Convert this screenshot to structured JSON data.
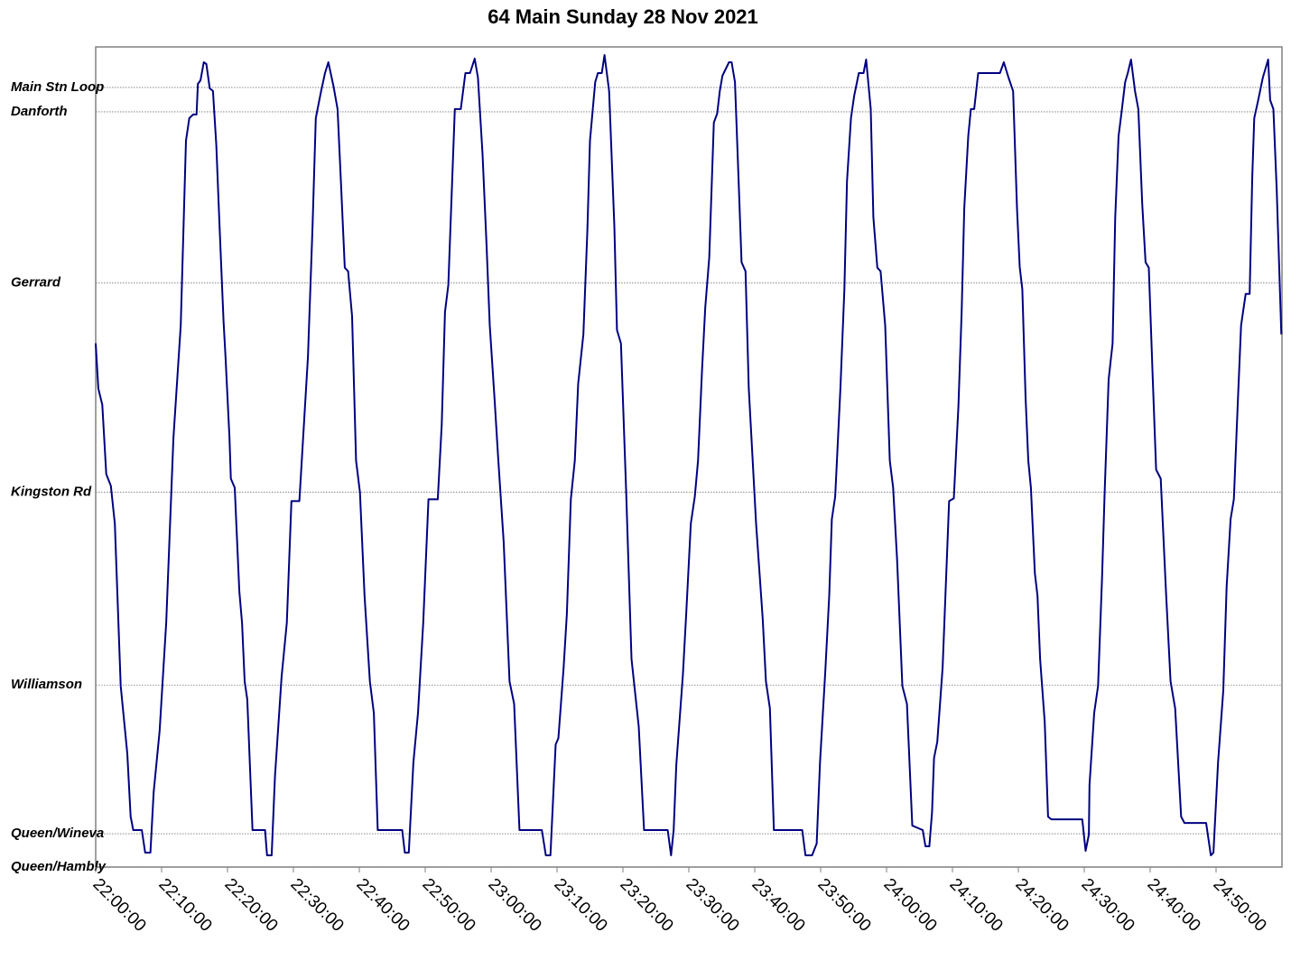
{
  "chart_data": {
    "type": "line",
    "title": "64 Main Sunday 28 Nov 2021",
    "xlim": [
      1320,
      1500
    ],
    "xticks": [
      {
        "value": 1320,
        "label": "22:00:00"
      },
      {
        "value": 1330,
        "label": "22:10:00"
      },
      {
        "value": 1340,
        "label": "22:20:00"
      },
      {
        "value": 1350,
        "label": "22:30:00"
      },
      {
        "value": 1360,
        "label": "22:40:00"
      },
      {
        "value": 1370,
        "label": "22:50:00"
      },
      {
        "value": 1380,
        "label": "23:00:00"
      },
      {
        "value": 1390,
        "label": "23:10:00"
      },
      {
        "value": 1400,
        "label": "23:20:00"
      },
      {
        "value": 1410,
        "label": "23:30:00"
      },
      {
        "value": 1420,
        "label": "23:40:00"
      },
      {
        "value": 1430,
        "label": "23:50:00"
      },
      {
        "value": 1440,
        "label": "24:00:00"
      },
      {
        "value": 1450,
        "label": "24:10:00"
      },
      {
        "value": 1460,
        "label": "24:20:00"
      },
      {
        "value": 1470,
        "label": "24:30:00"
      },
      {
        "value": 1480,
        "label": "24:40:00"
      },
      {
        "value": 1490,
        "label": "24:50:00"
      }
    ],
    "ylim": [
      0,
      9.1
    ],
    "yticks": [
      {
        "value": 0,
        "label": "Queen/Hambly"
      },
      {
        "value": 0.37,
        "label": "Queen/Wineva"
      },
      {
        "value": 2.02,
        "label": "Williamson"
      },
      {
        "value": 4.16,
        "label": "Kingston Rd"
      },
      {
        "value": 6.48,
        "label": "Gerrard"
      },
      {
        "value": 8.38,
        "label": "Danforth"
      },
      {
        "value": 8.65,
        "label": "Main Stn Loop"
      }
    ],
    "grid": true,
    "series": [
      {
        "color": "#000080",
        "x": [
          1320,
          1320.4,
          1321,
          1321.6,
          1322.3,
          1322.9,
          1323.8,
          1324.8,
          1325.3,
          1325.7,
          1327,
          1327.5,
          1328.3,
          1328.8,
          1329.7,
          1330.7,
          1331.8,
          1332.9,
          1333.7,
          1334.2,
          1334.8,
          1335.3,
          1335.5,
          1335.9,
          1336.4,
          1336.8,
          1337.3,
          1337.8,
          1338.3,
          1338.8,
          1339.4,
          1339.7,
          1340.3,
          1340.5,
          1341.1,
          1341.8,
          1342.2,
          1342.6,
          1343,
          1343.8,
          1345.7,
          1346,
          1346.7,
          1347.2,
          1348.2,
          1349,
          1349.7,
          1350.9,
          1352.2,
          1352.9,
          1353.4,
          1354.2,
          1354.8,
          1355.3,
          1356.1,
          1356.7,
          1357.2,
          1357.8,
          1358.3,
          1358.9,
          1359.5,
          1360.1,
          1360.8,
          1361.6,
          1362.2,
          1362.8,
          1366.5,
          1366.9,
          1367.5,
          1368.2,
          1368.9,
          1369.7,
          1370.5,
          1371.9,
          1372.5,
          1373,
          1373.5,
          1374.5,
          1375.4,
          1376.1,
          1376.8,
          1377.5,
          1378,
          1378.7,
          1379.3,
          1379.8,
          1380.5,
          1381.1,
          1381.9,
          1382.8,
          1383.5,
          1384.3,
          1387.7,
          1388.3,
          1389,
          1389.8,
          1390.2,
          1391,
          1391.5,
          1392.1,
          1392.7,
          1393.2,
          1394,
          1394.6,
          1395,
          1395.8,
          1396.2,
          1396.8,
          1397.2,
          1397.9,
          1398.7,
          1399.1,
          1399.7,
          1400.5,
          1401.3,
          1402.4,
          1403.2,
          1406.8,
          1407.3,
          1407.7,
          1408.1,
          1409.1,
          1409.6,
          1410.3,
          1410.9,
          1411.4,
          1412,
          1412.5,
          1413.1,
          1413.8,
          1414.3,
          1414.7,
          1415.1,
          1416.1,
          1416.5,
          1417,
          1417.5,
          1418,
          1418.6,
          1419.1,
          1420.2,
          1421.2,
          1421.7,
          1422.3,
          1422.9,
          1427.2,
          1427.7,
          1428.7,
          1429.4,
          1429.9,
          1430.7,
          1431.3,
          1431.7,
          1432.2,
          1433,
          1433.6,
          1434,
          1434.6,
          1435.1,
          1435.8,
          1436.5,
          1436.9,
          1437.6,
          1438,
          1438.6,
          1439.1,
          1439.8,
          1440.5,
          1441,
          1441.6,
          1442.4,
          1443.1,
          1443.9,
          1445.5,
          1445.9,
          1446.5,
          1446.9,
          1447.2,
          1447.7,
          1448.5,
          1449.5,
          1450.2,
          1450.9,
          1451.4,
          1451.8,
          1452.4,
          1452.8,
          1453.3,
          1453.9,
          1457.2,
          1457.8,
          1458.5,
          1459.2,
          1459.8,
          1460.2,
          1460.6,
          1461.1,
          1461.5,
          1461.9,
          1462.5,
          1462.9,
          1463.3,
          1464,
          1464.5,
          1465,
          1469.7,
          1470.2,
          1470.7,
          1470.8,
          1471.5,
          1472.1,
          1472.7,
          1473.1,
          1473.7,
          1474.3,
          1474.7,
          1475.2,
          1475.6,
          1476.2,
          1476.6,
          1477.1,
          1477.7,
          1478.2,
          1478.8,
          1479.3,
          1479.8,
          1480.4,
          1480.9,
          1481.6,
          1482.4,
          1483.1,
          1483.8,
          1484.7,
          1485.2,
          1488.5,
          1489.2,
          1489.6,
          1490.3,
          1491.1,
          1491.6,
          1492.2,
          1492.7,
          1493.3,
          1493.8,
          1494.5,
          1495.1,
          1495.5,
          1495.8,
          1496.4,
          1497.1,
          1497.9,
          1498.2,
          1498.7,
          1499.2,
          1499.9
        ],
        "values": [
          5.81,
          5.31,
          5.13,
          4.36,
          4.23,
          3.81,
          2.01,
          1.26,
          0.56,
          0.41,
          0.41,
          0.16,
          0.16,
          0.83,
          1.51,
          2.71,
          4.76,
          6.01,
          8.06,
          8.31,
          8.35,
          8.35,
          8.69,
          8.73,
          8.93,
          8.91,
          8.64,
          8.61,
          8.01,
          7.11,
          6.06,
          5.66,
          4.76,
          4.31,
          4.21,
          3.06,
          2.71,
          2.06,
          1.86,
          0.41,
          0.41,
          0.13,
          0.13,
          1.01,
          2.11,
          2.71,
          4.06,
          4.06,
          5.66,
          7.11,
          8.31,
          8.61,
          8.81,
          8.93,
          8.66,
          8.41,
          7.61,
          6.65,
          6.61,
          6.11,
          4.51,
          4.16,
          3.01,
          2.06,
          1.71,
          0.41,
          0.41,
          0.16,
          0.16,
          1.16,
          1.71,
          2.71,
          4.08,
          4.08,
          4.91,
          6.16,
          6.46,
          8.41,
          8.41,
          8.81,
          8.81,
          8.97,
          8.76,
          7.91,
          6.91,
          6.01,
          5.21,
          4.51,
          3.61,
          2.06,
          1.81,
          0.41,
          0.41,
          0.13,
          0.13,
          1.36,
          1.43,
          2.21,
          2.81,
          4.08,
          4.51,
          5.36,
          5.91,
          7.06,
          8.06,
          8.71,
          8.81,
          8.81,
          9.01,
          8.61,
          7.11,
          5.96,
          5.81,
          4.16,
          2.31,
          1.56,
          0.41,
          0.41,
          0.13,
          0.41,
          1.13,
          2.13,
          2.81,
          3.81,
          4.11,
          4.51,
          5.51,
          6.21,
          6.76,
          8.26,
          8.36,
          8.61,
          8.78,
          8.93,
          8.93,
          8.71,
          7.71,
          6.71,
          6.61,
          5.31,
          3.81,
          2.76,
          2.06,
          1.76,
          0.41,
          0.41,
          0.13,
          0.13,
          0.26,
          1.16,
          2.16,
          3.01,
          3.86,
          4.11,
          5.31,
          6.41,
          7.61,
          8.31,
          8.56,
          8.81,
          8.81,
          8.96,
          8.41,
          7.21,
          6.65,
          6.61,
          6.01,
          4.51,
          4.21,
          3.41,
          2.01,
          1.81,
          0.46,
          0.41,
          0.23,
          0.23,
          0.61,
          1.21,
          1.39,
          2.21,
          4.06,
          4.09,
          5.11,
          6.16,
          7.31,
          8.11,
          8.41,
          8.41,
          8.81,
          8.81,
          8.93,
          8.76,
          8.61,
          7.31,
          6.66,
          6.41,
          5.21,
          4.51,
          4.21,
          3.26,
          3.01,
          2.31,
          1.61,
          0.56,
          0.53,
          0.53,
          0.18,
          0.36,
          0.91,
          1.71,
          2.01,
          3.21,
          4.16,
          5.41,
          5.81,
          7.21,
          8.11,
          8.34,
          8.71,
          8.81,
          8.96,
          8.61,
          8.41,
          7.36,
          6.71,
          6.65,
          5.41,
          4.41,
          4.31,
          3.06,
          2.06,
          1.76,
          0.56,
          0.49,
          0.49,
          0.13,
          0.16,
          1.16,
          1.96,
          3.11,
          3.86,
          4.08,
          5.16,
          6.01,
          6.36,
          6.36,
          7.66,
          8.31,
          8.51,
          8.76,
          8.96,
          8.51,
          8.41,
          7.51,
          5.91
        ]
      }
    ]
  }
}
